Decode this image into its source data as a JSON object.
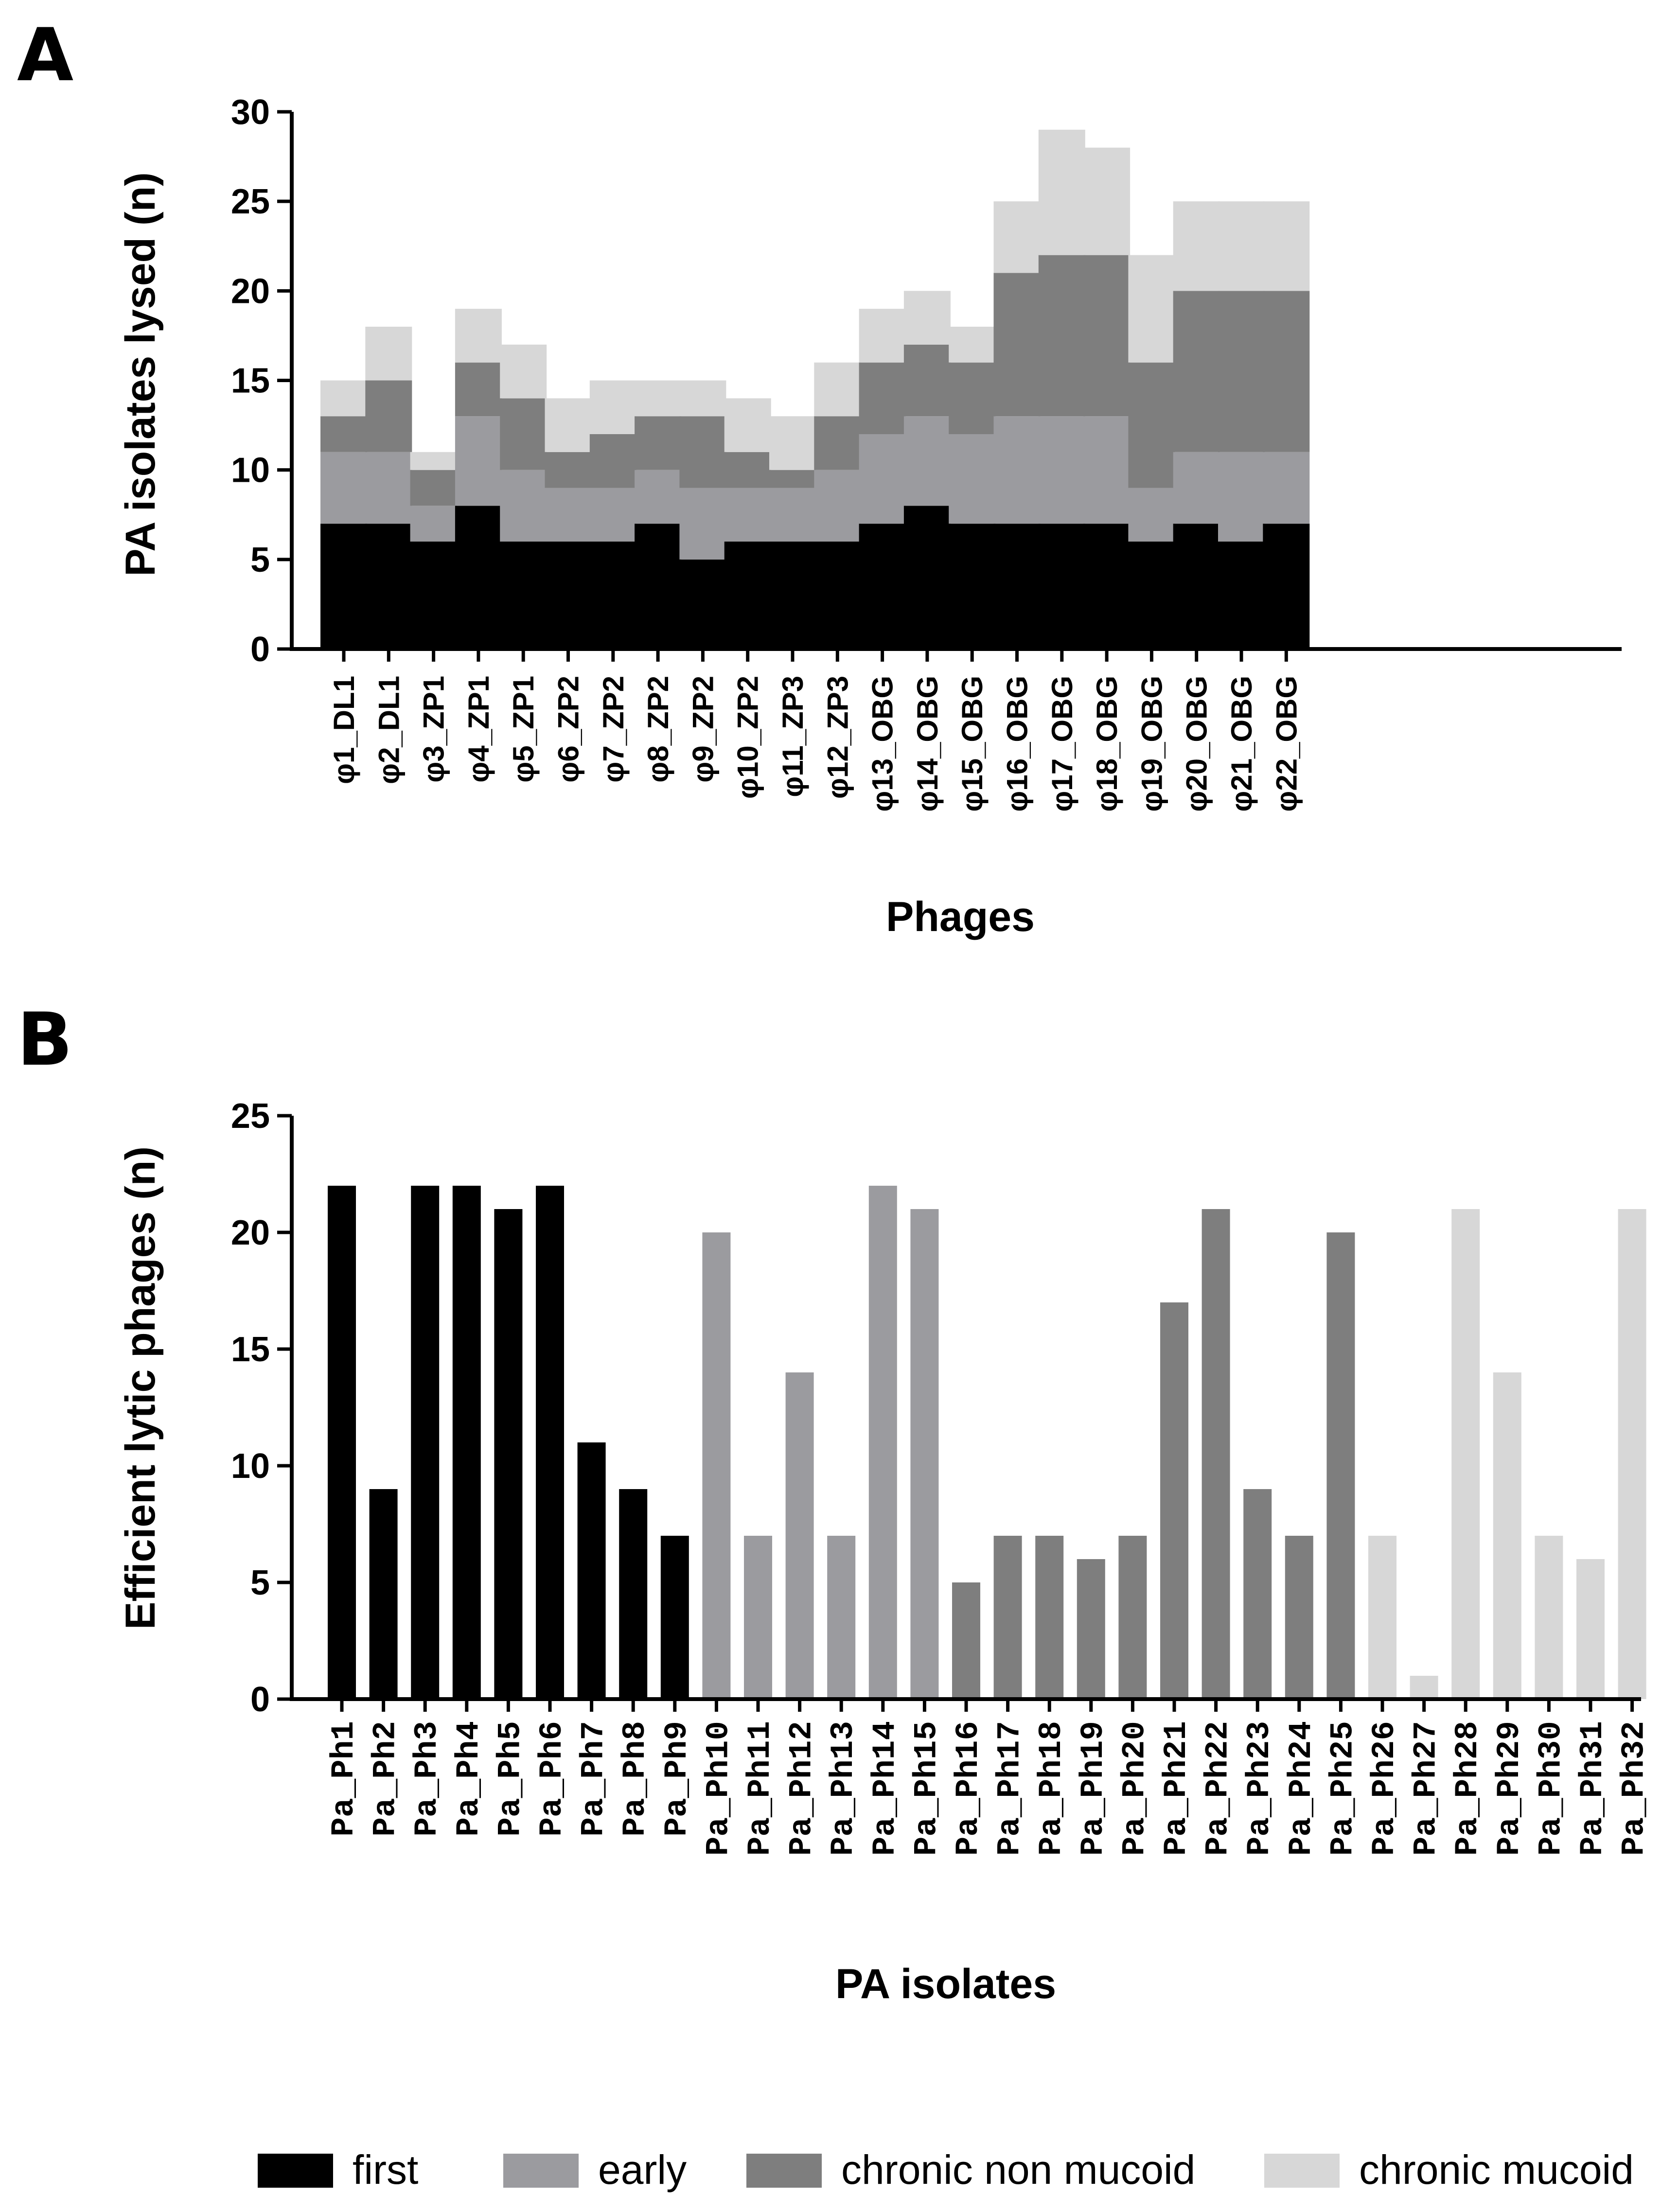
{
  "colors": {
    "first": "#000000",
    "early": "#9b9b9f",
    "chronic_non_mucoid": "#7e7e7e",
    "chronic_mucoid": "#d7d7d7",
    "axis": "#000000"
  },
  "chart_data": [
    {
      "panel": "A",
      "type": "bar",
      "stacked": true,
      "xlabel": "Phages",
      "ylabel": "PA isolates lysed (n)",
      "ylim": [
        0,
        30
      ],
      "yticks": [
        0,
        5,
        10,
        15,
        20,
        25,
        30
      ],
      "categories": [
        "φ1_DL1",
        "φ2_DL1",
        "φ3_ZP1",
        "φ4_ZP1",
        "φ5_ZP1",
        "φ6_ZP2",
        "φ7_ZP2",
        "φ8_ZP2",
        "φ9_ZP2",
        "φ10_ZP2",
        "φ11_ZP3",
        "φ12_ZP3",
        "φ13_OBG",
        "φ14_OBG",
        "φ15_OBG",
        "φ16_OBG",
        "φ17_OBG",
        "φ18_OBG",
        "φ19_OBG",
        "φ20_OBG",
        "φ21_OBG",
        "φ22_OBG"
      ],
      "series": [
        {
          "name": "first",
          "values": [
            7,
            7,
            6,
            8,
            6,
            6,
            6,
            7,
            5,
            6,
            6,
            6,
            7,
            8,
            7,
            7,
            7,
            7,
            6,
            7,
            6,
            7
          ]
        },
        {
          "name": "early",
          "values": [
            4,
            4,
            2,
            5,
            4,
            3,
            3,
            3,
            4,
            3,
            3,
            4,
            5,
            5,
            5,
            6,
            6,
            6,
            3,
            4,
            5,
            4
          ]
        },
        {
          "name": "chronic non mucoid",
          "values": [
            2,
            4,
            2,
            3,
            4,
            2,
            3,
            3,
            4,
            2,
            1,
            3,
            4,
            4,
            4,
            8,
            9,
            9,
            7,
            9,
            9,
            9
          ]
        },
        {
          "name": "chronic mucoid",
          "values": [
            2,
            3,
            1,
            3,
            3,
            3,
            3,
            2,
            2,
            3,
            3,
            3,
            3,
            3,
            2,
            4,
            7,
            6,
            6,
            5,
            5,
            5
          ]
        }
      ]
    },
    {
      "panel": "B",
      "type": "bar",
      "xlabel": "PA isolates",
      "ylabel": "Efficient lytic phages (n)",
      "ylim": [
        0,
        25
      ],
      "yticks": [
        0,
        5,
        10,
        15,
        20,
        25
      ],
      "categories": [
        "Pa_Ph1",
        "Pa_Ph2",
        "Pa_Ph3",
        "Pa_Ph4",
        "Pa_Ph5",
        "Pa_Ph6",
        "Pa_Ph7",
        "Pa_Ph8",
        "Pa_Ph9",
        "Pa_Ph10",
        "Pa_Ph11",
        "Pa_Ph12",
        "Pa_Ph13",
        "Pa_Ph14",
        "Pa_Ph15",
        "Pa_Ph16",
        "Pa_Ph17",
        "Pa_Ph18",
        "Pa_Ph19",
        "Pa_Ph20",
        "Pa_Ph21",
        "Pa_Ph22",
        "Pa_Ph23",
        "Pa_Ph24",
        "Pa_Ph25",
        "Pa_Ph26",
        "Pa_Ph27",
        "Pa_Ph28",
        "Pa_Ph29",
        "Pa_Ph30",
        "Pa_Ph31",
        "Pa_Ph32"
      ],
      "values": [
        22,
        9,
        22,
        22,
        21,
        22,
        11,
        9,
        7,
        20,
        7,
        14,
        7,
        22,
        21,
        5,
        7,
        7,
        6,
        7,
        17,
        21,
        9,
        7,
        20,
        7,
        1,
        21,
        14,
        7,
        6,
        21
      ],
      "groups": [
        "first",
        "first",
        "first",
        "first",
        "first",
        "first",
        "first",
        "first",
        "first",
        "early",
        "early",
        "early",
        "early",
        "early",
        "early",
        "chronic non mucoid",
        "chronic non mucoid",
        "chronic non mucoid",
        "chronic non mucoid",
        "chronic non mucoid",
        "chronic non mucoid",
        "chronic non mucoid",
        "chronic non mucoid",
        "chronic non mucoid",
        "chronic non mucoid",
        "chronic mucoid",
        "chronic mucoid",
        "chronic mucoid",
        "chronic mucoid",
        "chronic mucoid",
        "chronic mucoid",
        "chronic mucoid"
      ]
    }
  ],
  "legend": [
    {
      "label": "first",
      "color_key": "first"
    },
    {
      "label": "early",
      "color_key": "early"
    },
    {
      "label": "chronic non mucoid",
      "color_key": "chronic_non_mucoid"
    },
    {
      "label": "chronic mucoid",
      "color_key": "chronic_mucoid"
    }
  ],
  "panel_labels": [
    "A",
    "B"
  ]
}
